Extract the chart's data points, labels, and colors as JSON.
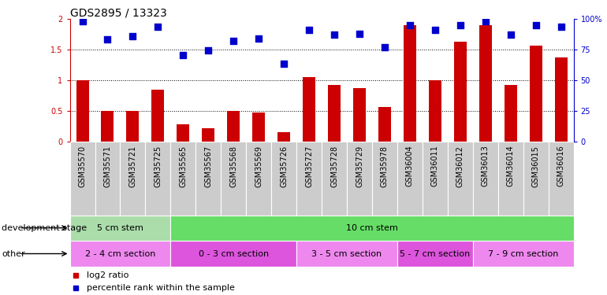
{
  "title": "GDS2895 / 13323",
  "samples": [
    "GSM35570",
    "GSM35571",
    "GSM35721",
    "GSM35725",
    "GSM35565",
    "GSM35567",
    "GSM35568",
    "GSM35569",
    "GSM35726",
    "GSM35727",
    "GSM35728",
    "GSM35729",
    "GSM35978",
    "GSM36004",
    "GSM36011",
    "GSM36012",
    "GSM36013",
    "GSM36014",
    "GSM36015",
    "GSM36016"
  ],
  "log2_ratio": [
    1.0,
    0.5,
    0.5,
    0.85,
    0.28,
    0.22,
    0.5,
    0.47,
    0.15,
    1.05,
    0.92,
    0.88,
    0.57,
    1.9,
    1.0,
    1.63,
    1.9,
    0.93,
    1.57,
    1.37
  ],
  "percentile": [
    1.96,
    1.67,
    1.72,
    1.88,
    1.42,
    1.49,
    1.65,
    1.68,
    1.27,
    1.83,
    1.75,
    1.76,
    1.54,
    1.9,
    1.82,
    1.9,
    1.96,
    1.75,
    1.9,
    1.87
  ],
  "bar_color": "#cc0000",
  "dot_color": "#0000cc",
  "ylim_left": [
    0,
    2.0
  ],
  "yticks_left": [
    0,
    0.5,
    1.0,
    1.5,
    2.0
  ],
  "ytick_labels_left": [
    "0",
    "0.5",
    "1",
    "1.5",
    "2"
  ],
  "yticks_right": [
    0,
    25,
    50,
    75,
    100
  ],
  "ytick_labels_right": [
    "0",
    "25",
    "50",
    "75",
    "100%"
  ],
  "hlines": [
    0.5,
    1.0,
    1.5
  ],
  "dev_stage_groups": [
    {
      "label": "5 cm stem",
      "start": 0,
      "end": 4,
      "color": "#aaddaa"
    },
    {
      "label": "10 cm stem",
      "start": 4,
      "end": 20,
      "color": "#66dd66"
    }
  ],
  "other_groups": [
    {
      "label": "2 - 4 cm section",
      "start": 0,
      "end": 4,
      "color": "#ee88ee"
    },
    {
      "label": "0 - 3 cm section",
      "start": 4,
      "end": 9,
      "color": "#dd55dd"
    },
    {
      "label": "3 - 5 cm section",
      "start": 9,
      "end": 13,
      "color": "#ee88ee"
    },
    {
      "label": "5 - 7 cm section",
      "start": 13,
      "end": 16,
      "color": "#dd55dd"
    },
    {
      "label": "7 - 9 cm section",
      "start": 16,
      "end": 20,
      "color": "#ee88ee"
    }
  ],
  "row_labels": [
    "development stage",
    "other"
  ],
  "legend_items": [
    {
      "color": "#cc0000",
      "label": "log2 ratio"
    },
    {
      "color": "#0000cc",
      "label": "percentile rank within the sample"
    }
  ],
  "background_color": "#ffffff",
  "xlabel_bg": "#cccccc",
  "bar_width": 0.5,
  "dot_size": 28,
  "title_fontsize": 10,
  "tick_fontsize": 7,
  "label_fontsize": 8,
  "row_label_fontsize": 8
}
